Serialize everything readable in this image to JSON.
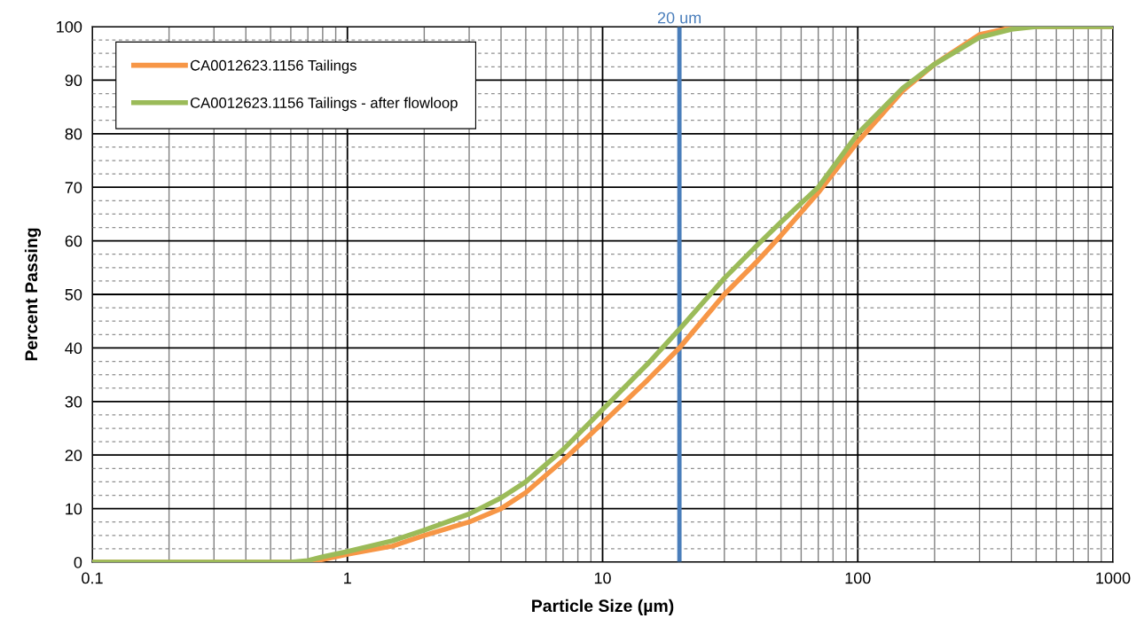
{
  "chart_data": {
    "type": "line",
    "xlabel": "Particle Size (µm)",
    "ylabel": "Percent Passing",
    "x": [
      0.1,
      0.6,
      0.7,
      0.8,
      1,
      1.5,
      2,
      3,
      4,
      5,
      7,
      10,
      15,
      20,
      30,
      40,
      50,
      70,
      100,
      150,
      200,
      300,
      400,
      500,
      1000
    ],
    "series": [
      {
        "name": "CA0012623.1156 Tailings",
        "color": "#f79646",
        "values": [
          0,
          0,
          0,
          0.5,
          1.5,
          3,
          5,
          7.5,
          10,
          13,
          19,
          26,
          34,
          40,
          50,
          56,
          61,
          69,
          78.5,
          88,
          93,
          98.5,
          99.8,
          100,
          100
        ]
      },
      {
        "name": "CA0012623.1156 Tailings - after flowloop",
        "color": "#9bbb59",
        "values": [
          0,
          0,
          0.3,
          1,
          2,
          4,
          6,
          9,
          12,
          15,
          21,
          28.5,
          37,
          43.5,
          53,
          59,
          63.5,
          70,
          80,
          88.5,
          93,
          98,
          99.5,
          100,
          100
        ]
      }
    ],
    "log": "x",
    "xlim": [
      0.1,
      1000
    ],
    "xticks": [
      0.1,
      1,
      10,
      100,
      1000
    ],
    "ylim": [
      0,
      100
    ],
    "yticks": [
      0,
      10,
      20,
      30,
      40,
      50,
      60,
      70,
      80,
      90,
      100
    ],
    "ref_lines": [
      {
        "axis": "x",
        "value": 20,
        "label": "20 um",
        "color": "#4a7ebb"
      }
    ],
    "grid": true,
    "legend": "top left",
    "marker": "none",
    "line_style": "solid"
  }
}
